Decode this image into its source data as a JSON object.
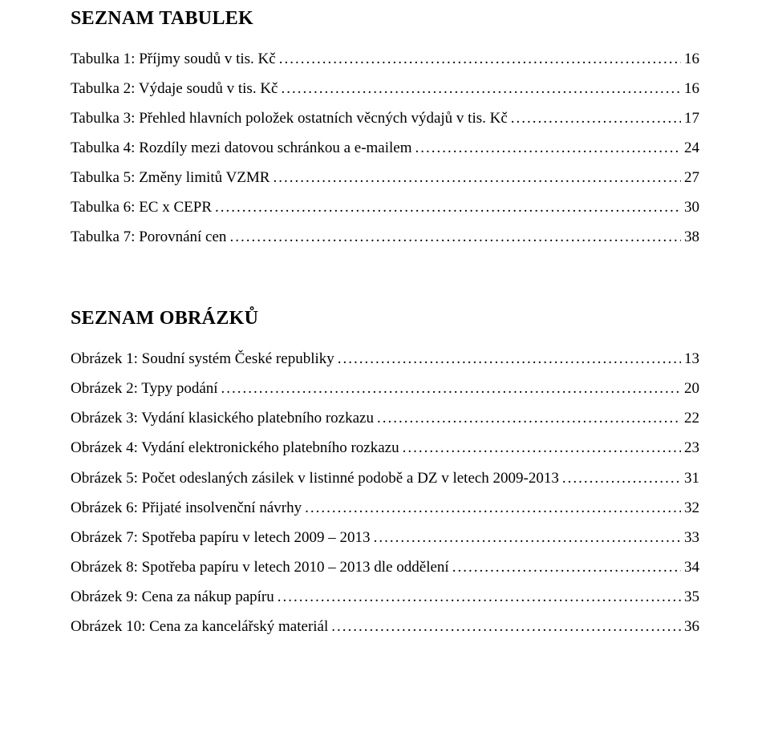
{
  "font": {
    "family": "Times New Roman",
    "heading_size_pt": 18,
    "body_size_pt": 14
  },
  "colors": {
    "text": "#000000",
    "background": "#ffffff"
  },
  "tables": {
    "heading": "SEZNAM TABULEK",
    "items": [
      {
        "label": "Tabulka 1: Příjmy soudů v tis. Kč",
        "page": "16"
      },
      {
        "label": "Tabulka 2: Výdaje soudů v tis. Kč",
        "page": "16"
      },
      {
        "label": "Tabulka 3: Přehled hlavních položek ostatních věcných výdajů v tis. Kč",
        "page": "17"
      },
      {
        "label": "Tabulka 4: Rozdíly mezi datovou schránkou a e-mailem",
        "page": "24"
      },
      {
        "label": "Tabulka 5: Změny limitů VZMR",
        "page": "27"
      },
      {
        "label": "Tabulka 6: EC x CEPR",
        "page": "30"
      },
      {
        "label": "Tabulka 7: Porovnání cen",
        "page": "38"
      }
    ]
  },
  "figures": {
    "heading": "SEZNAM OBRÁZKŮ",
    "items": [
      {
        "label": "Obrázek 1: Soudní systém České republiky",
        "page": "13"
      },
      {
        "label": "Obrázek 2: Typy podání",
        "page": "20"
      },
      {
        "label": "Obrázek 3: Vydání klasického platebního rozkazu",
        "page": "22"
      },
      {
        "label": "Obrázek 4: Vydání elektronického platebního rozkazu",
        "page": "23"
      },
      {
        "label": "Obrázek 5: Počet odeslaných zásilek v listinné podobě a DZ v letech 2009-2013",
        "page": "31"
      },
      {
        "label": "Obrázek 6: Přijaté insolvenční návrhy",
        "page": "32"
      },
      {
        "label": "Obrázek 7: Spotřeba papíru v letech 2009 – 2013",
        "page": "33"
      },
      {
        "label": "Obrázek 8: Spotřeba papíru v letech 2010 – 2013 dle oddělení",
        "page": "34"
      },
      {
        "label": "Obrázek 9: Cena za nákup papíru",
        "page": "35"
      },
      {
        "label": "Obrázek 10: Cena za kancelářský materiál",
        "page": "36"
      }
    ]
  }
}
